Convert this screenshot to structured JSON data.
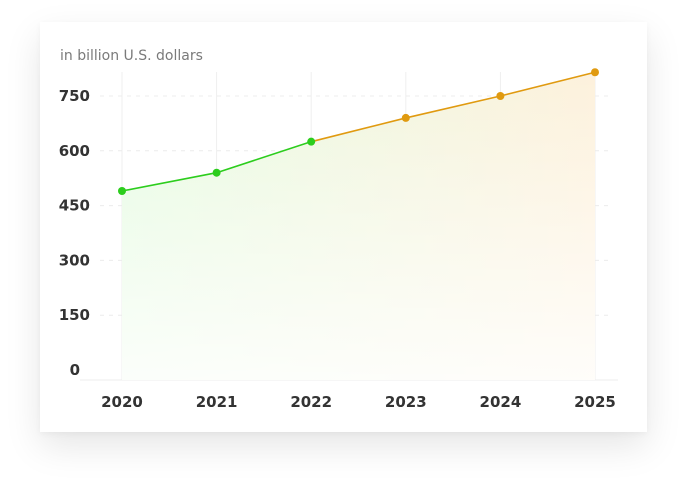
{
  "chart_data": {
    "type": "line",
    "title": "",
    "unit_label": "in billion U.S. dollars",
    "x": [
      "2020",
      "2021",
      "2022",
      "2023",
      "2024",
      "2025"
    ],
    "y_ticks": [
      "0",
      "150",
      "300",
      "450",
      "600",
      "750"
    ],
    "ylim": [
      0,
      750
    ],
    "grid": true,
    "legend": "none",
    "series": [
      {
        "values": [
          490,
          540,
          625,
          690,
          750,
          815
        ],
        "segment_colors": [
          "#2ccd1d",
          "#2ccd1d",
          "#2ccd1d",
          "#e09a10",
          "#e09a10",
          "#e09a10"
        ]
      }
    ],
    "colors": {
      "actual": "#2ccd1d",
      "forecast": "#e09a10",
      "fill_left": "#e5fbe1",
      "fill_right": "#fdf1dc"
    }
  }
}
